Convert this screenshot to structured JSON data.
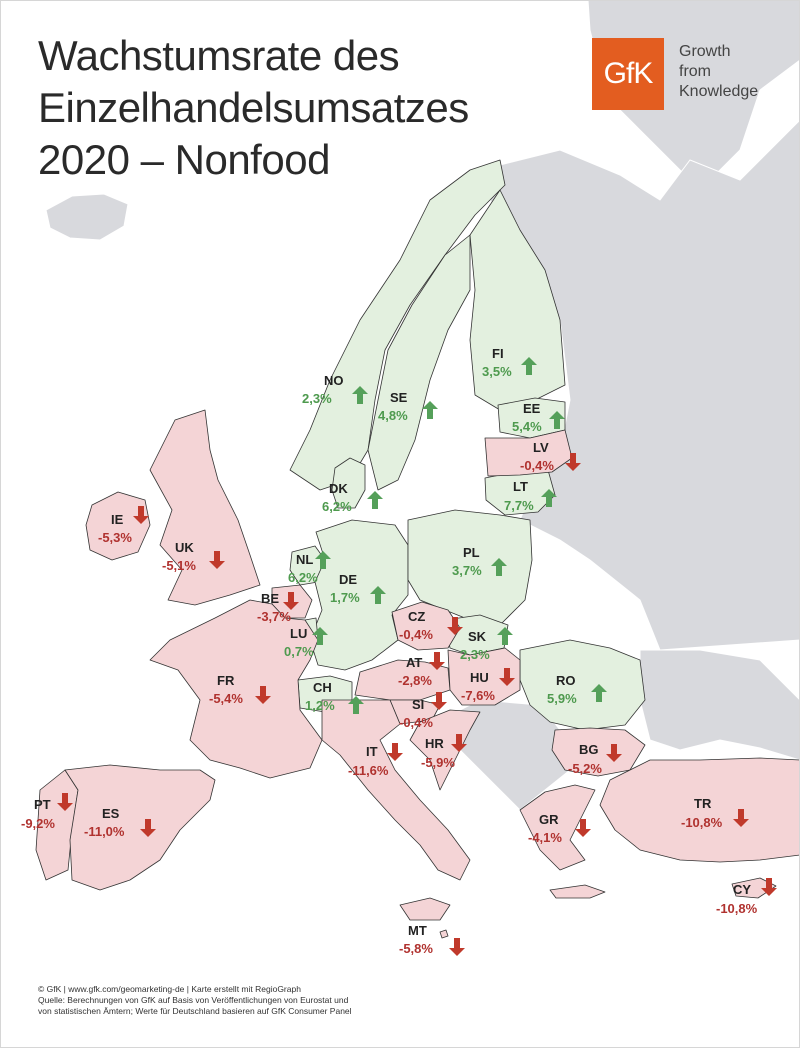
{
  "title_lines": [
    "Wachstumsrate des",
    "Einzelhandelsumsatzes",
    "2020 – Nonfood"
  ],
  "logo": {
    "mark": "GfK",
    "tagline_lines": [
      "Growth",
      "from",
      "Knowledge"
    ],
    "color": "#e35d20"
  },
  "colors": {
    "growth_fill": "#e3f0df",
    "decline_fill": "#f4d4d6",
    "other_land": "#d8d9dd",
    "growth_text": "#4e9a4e",
    "decline_text": "#b0322f",
    "arrow_up": "#55a05a",
    "arrow_down": "#c0392b"
  },
  "countries": [
    {
      "code": "NO",
      "value": "2,3%",
      "trend": "up"
    },
    {
      "code": "SE",
      "value": "4,8%",
      "trend": "up"
    },
    {
      "code": "FI",
      "value": "3,5%",
      "trend": "up"
    },
    {
      "code": "EE",
      "value": "5,4%",
      "trend": "up"
    },
    {
      "code": "LV",
      "value": "-0,4%",
      "trend": "down"
    },
    {
      "code": "LT",
      "value": "7,7%",
      "trend": "up"
    },
    {
      "code": "DK",
      "value": "6,2%",
      "trend": "up"
    },
    {
      "code": "IE",
      "value": "-5,3%",
      "trend": "down"
    },
    {
      "code": "UK",
      "value": "-5,1%",
      "trend": "down"
    },
    {
      "code": "NL",
      "value": "6,2%",
      "trend": "up"
    },
    {
      "code": "DE",
      "value": "1,7%",
      "trend": "up"
    },
    {
      "code": "PL",
      "value": "3,7%",
      "trend": "up"
    },
    {
      "code": "BE",
      "value": "-3,7%",
      "trend": "down"
    },
    {
      "code": "LU",
      "value": "0,7%",
      "trend": "up"
    },
    {
      "code": "CZ",
      "value": "-0,4%",
      "trend": "down"
    },
    {
      "code": "SK",
      "value": "2,3%",
      "trend": "up"
    },
    {
      "code": "FR",
      "value": "-5,4%",
      "trend": "down"
    },
    {
      "code": "AT",
      "value": "-2,8%",
      "trend": "down"
    },
    {
      "code": "HU",
      "value": "-7,6%",
      "trend": "down"
    },
    {
      "code": "RO",
      "value": "5,9%",
      "trend": "up"
    },
    {
      "code": "CH",
      "value": "1,2%",
      "trend": "up"
    },
    {
      "code": "SI",
      "value": "-0,4%",
      "trend": "down"
    },
    {
      "code": "IT",
      "value": "-11,6%",
      "trend": "down"
    },
    {
      "code": "HR",
      "value": "-5,9%",
      "trend": "down"
    },
    {
      "code": "BG",
      "value": "-5,2%",
      "trend": "down"
    },
    {
      "code": "PT",
      "value": "-9,2%",
      "trend": "down"
    },
    {
      "code": "ES",
      "value": "-11,0%",
      "trend": "down"
    },
    {
      "code": "GR",
      "value": "-4,1%",
      "trend": "down"
    },
    {
      "code": "TR",
      "value": "-10,8%",
      "trend": "down"
    },
    {
      "code": "CY",
      "value": "-10,8%",
      "trend": "down"
    },
    {
      "code": "MT",
      "value": "-5,8%",
      "trend": "down"
    }
  ],
  "footer_lines": [
    "© GfK | www.gfk.com/geomarketing-de | Karte erstellt mit RegioGraph",
    "Quelle: Berechnungen von GfK auf Basis von Veröffentlichungen von Eurostat und",
    "von statistischen Ämtern; Werte für Deutschland basieren auf GfK Consumer Panel"
  ]
}
